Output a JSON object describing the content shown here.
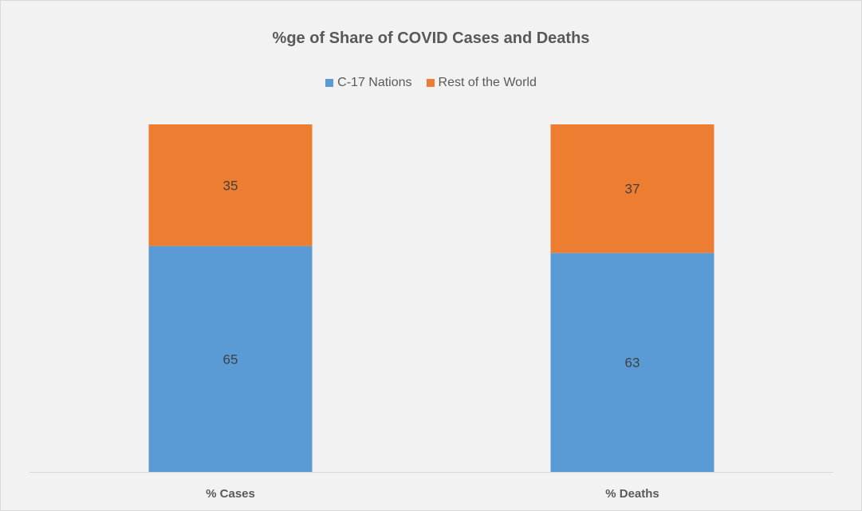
{
  "colors": {
    "background": "#f2f2f2",
    "axis": "#d9d9d9",
    "text": "#595959",
    "series": [
      "#5b9bd5",
      "#ed7d31"
    ]
  },
  "chart_data": {
    "type": "bar",
    "stacked": true,
    "title": "%ge of Share of COVID Cases and Deaths",
    "xlabel": "",
    "ylabel": "",
    "categories": [
      "% Cases",
      "% Deaths"
    ],
    "series": [
      {
        "name": "C-17 Nations",
        "values": [
          65,
          63
        ]
      },
      {
        "name": "Rest of the World",
        "values": [
          35,
          37
        ]
      }
    ],
    "ylim": [
      0,
      100
    ],
    "grid": false,
    "legend": "top",
    "data_labels": true
  }
}
